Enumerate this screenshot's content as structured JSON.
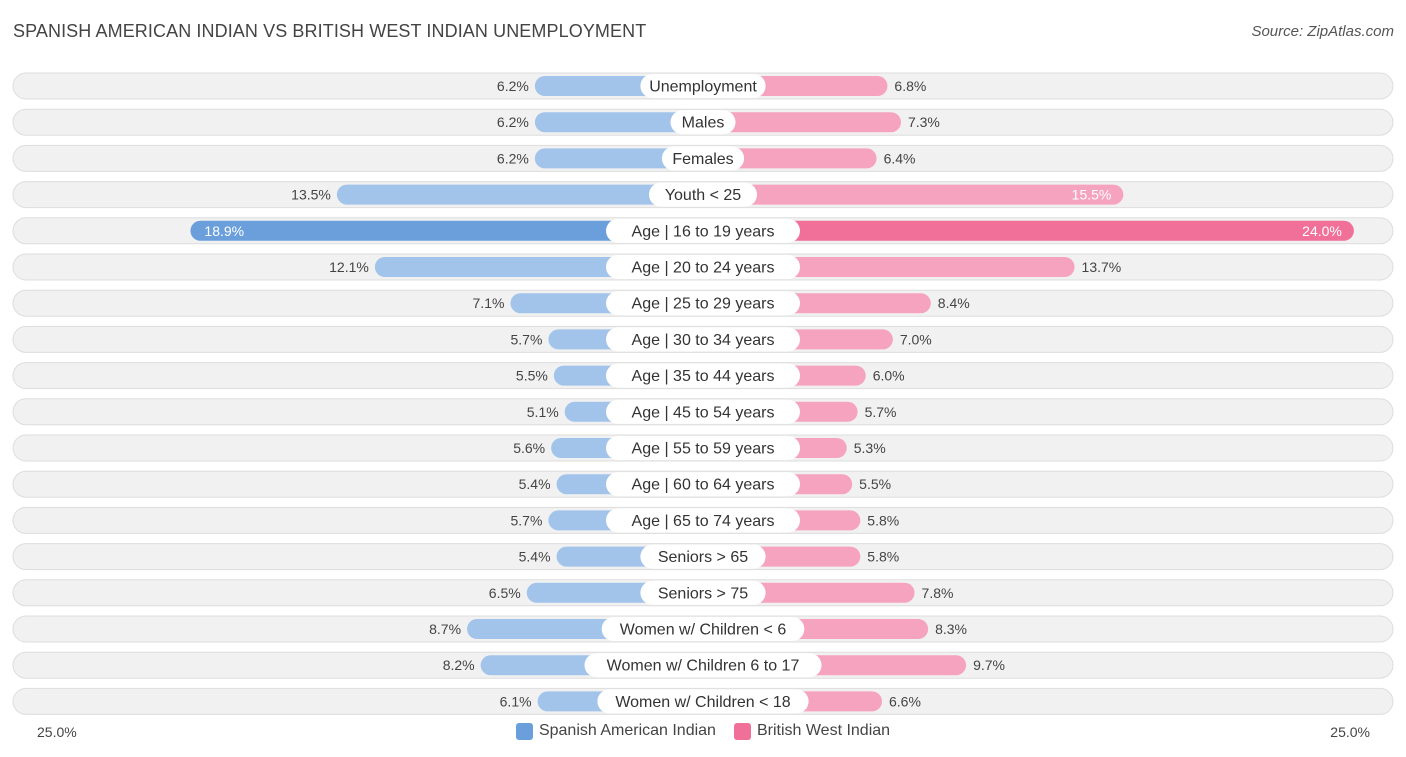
{
  "title": "SPANISH AMERICAN INDIAN VS BRITISH WEST INDIAN UNEMPLOYMENT",
  "source": "Source: ZipAtlas.com",
  "axis": {
    "left_label": "25.0%",
    "right_label": "25.0%"
  },
  "colors": {
    "left": "#a3c4ea",
    "left_strong": "#6a9fdc",
    "right": "#f5a3be",
    "right_strong": "#f07099",
    "track": "#f1f1f1",
    "track_border": "#dddddd"
  },
  "chart_data": {
    "type": "bar",
    "orientation": "diverging-horizontal",
    "xlim": [
      0,
      25.0
    ],
    "categories": [
      "Unemployment",
      "Males",
      "Females",
      "Youth < 25",
      "Age | 16 to 19 years",
      "Age | 20 to 24 years",
      "Age | 25 to 29 years",
      "Age | 30 to 34 years",
      "Age | 35 to 44 years",
      "Age | 45 to 54 years",
      "Age | 55 to 59 years",
      "Age | 60 to 64 years",
      "Age | 65 to 74 years",
      "Seniors > 65",
      "Seniors > 75",
      "Women w/ Children < 6",
      "Women w/ Children 6 to 17",
      "Women w/ Children < 18"
    ],
    "series": [
      {
        "name": "Spanish American Indian",
        "values": [
          6.2,
          6.2,
          6.2,
          13.5,
          18.9,
          12.1,
          7.1,
          5.7,
          5.5,
          5.1,
          5.6,
          5.4,
          5.7,
          5.4,
          6.5,
          8.7,
          8.2,
          6.1
        ],
        "labels": [
          "6.2%",
          "6.2%",
          "6.2%",
          "13.5%",
          "18.9%",
          "12.1%",
          "7.1%",
          "5.7%",
          "5.5%",
          "5.1%",
          "5.6%",
          "5.4%",
          "5.7%",
          "5.4%",
          "6.5%",
          "8.7%",
          "8.2%",
          "6.1%"
        ]
      },
      {
        "name": "British West Indian",
        "values": [
          6.8,
          7.3,
          6.4,
          15.5,
          24.0,
          13.7,
          8.4,
          7.0,
          6.0,
          5.7,
          5.3,
          5.5,
          5.8,
          5.8,
          7.8,
          8.3,
          9.7,
          6.6
        ],
        "labels": [
          "6.8%",
          "7.3%",
          "6.4%",
          "15.5%",
          "24.0%",
          "13.7%",
          "8.4%",
          "7.0%",
          "6.0%",
          "5.7%",
          "5.3%",
          "5.5%",
          "5.8%",
          "5.8%",
          "7.8%",
          "8.3%",
          "9.7%",
          "6.6%"
        ]
      }
    ],
    "legend_position": "bottom-center",
    "grid": false
  }
}
